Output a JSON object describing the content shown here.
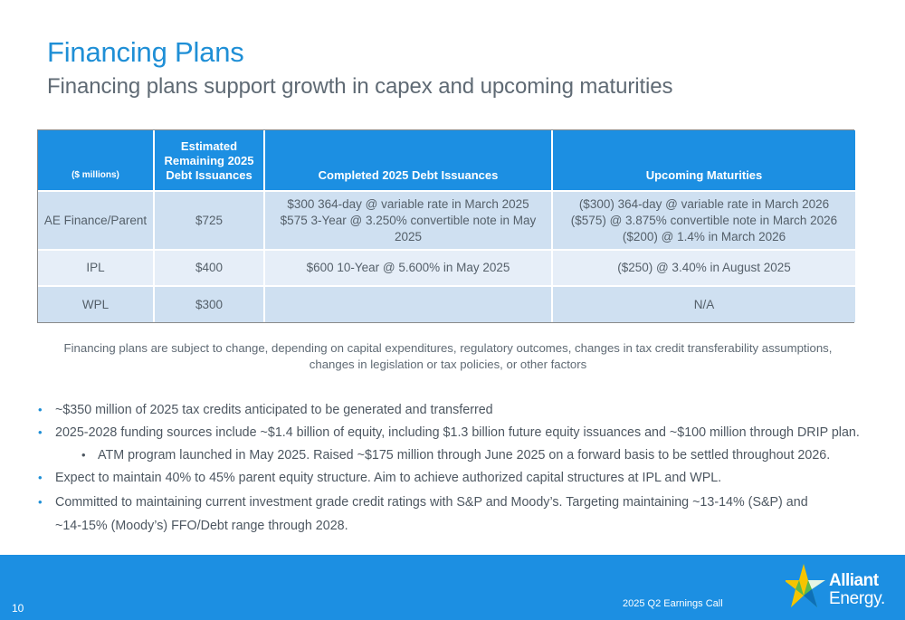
{
  "header": {
    "title": "Financing Plans",
    "subtitle": "Financing plans support growth in capex and upcoming maturities"
  },
  "table": {
    "columns": [
      "($ millions)",
      "Estimated Remaining 2025 Debt Issuances",
      "Completed 2025 Debt Issuances",
      "Upcoming Maturities"
    ],
    "rows": [
      {
        "entity": "AE Finance/Parent",
        "remaining": "$725",
        "completed": [
          "$300 364-day @ variable rate in March 2025",
          "$575 3-Year @ 3.250% convertible note in May 2025"
        ],
        "maturities": [
          "($300) 364-day @ variable rate in March 2026",
          "($575) @ 3.875% convertible note in March 2026",
          "($200) @ 1.4% in March 2026"
        ]
      },
      {
        "entity": "IPL",
        "remaining": "$400",
        "completed": [
          "$600 10-Year @ 5.600% in May 2025"
        ],
        "maturities": [
          "($250) @ 3.40% in August 2025"
        ]
      },
      {
        "entity": "WPL",
        "remaining": "$300",
        "completed": [
          ""
        ],
        "maturities": [
          "N/A"
        ]
      }
    ]
  },
  "note": "Financing plans are subject to change, depending on capital expenditures, regulatory outcomes, changes in tax credit transferability assumptions, changes in legislation or tax policies, or other factors",
  "bullets": [
    "~$350 million of 2025 tax credits anticipated to be generated and transferred",
    "2025-2028 funding sources include ~$1.4 billion of equity, including $1.3 billion future equity issuances and ~$100 million through DRIP plan.",
    "ATM program launched in May 2025. Raised ~$175 million through June 2025 on a forward basis to be settled throughout 2026.",
    "Expect to maintain 40% to 45% parent equity structure.  Aim to achieve authorized capital structures at IPL and WPL.",
    "Committed to maintaining current investment grade credit ratings with S&P and Moody’s. Targeting maintaining ~13-14% (S&P) and ~14-15% (Moody’s) FFO/Debt range through 2028."
  ],
  "footer": {
    "page_number": "10",
    "event": "2025 Q2 Earnings Call",
    "logo_line1": "Alliant",
    "logo_line2": "Energy."
  },
  "colors": {
    "accent": "#1c8fe2",
    "row_dark": "#cfe0f1",
    "row_light": "#e6eef8",
    "logo_yellow": "#f5c400",
    "logo_green": "#5cb84a"
  }
}
